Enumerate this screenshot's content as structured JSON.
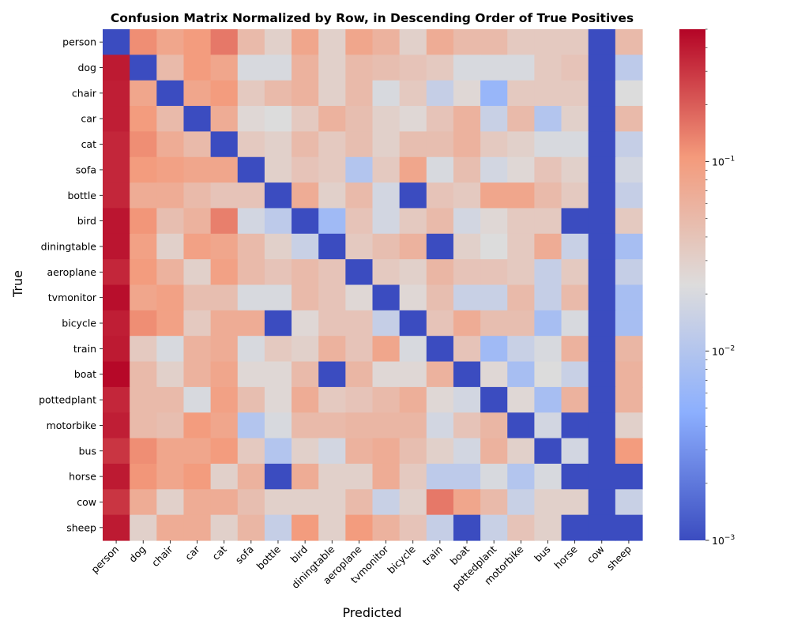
{
  "chart_data": {
    "type": "heatmap",
    "title": "Confusion Matrix Normalized by Row, in Descending Order of True Positives",
    "xlabel": "Predicted",
    "ylabel": "True",
    "scale": "log",
    "vmin": 0.001,
    "vmax": 0.5,
    "colormap": "coolwarm",
    "cmap_stops": [
      "#3b4cc0",
      "#8caffe",
      "#dddcdc",
      "#f49a7b",
      "#b40426"
    ],
    "colorbar_ticks": [
      {
        "value": 0.1,
        "base": "10",
        "exp": "−1"
      },
      {
        "value": 0.01,
        "base": "10",
        "exp": "−2"
      },
      {
        "value": 0.001,
        "base": "10",
        "exp": "−3"
      }
    ],
    "labels": [
      "person",
      "dog",
      "chair",
      "car",
      "cat",
      "sofa",
      "bottle",
      "bird",
      "diningtable",
      "aeroplane",
      "tvmonitor",
      "bicycle",
      "train",
      "boat",
      "pottedplant",
      "motorbike",
      "bus",
      "horse",
      "cow",
      "sheep"
    ],
    "matrix": [
      [
        0.001,
        0.12,
        0.08,
        0.1,
        0.15,
        0.05,
        0.03,
        0.08,
        0.03,
        0.08,
        0.06,
        0.03,
        0.07,
        0.05,
        0.05,
        0.035,
        0.035,
        0.035,
        0.001,
        0.05
      ],
      [
        0.4,
        0.001,
        0.05,
        0.1,
        0.08,
        0.02,
        0.02,
        0.06,
        0.03,
        0.05,
        0.045,
        0.04,
        0.035,
        0.02,
        0.02,
        0.02,
        0.035,
        0.04,
        0.001,
        0.012
      ],
      [
        0.38,
        0.08,
        0.001,
        0.08,
        0.1,
        0.035,
        0.05,
        0.06,
        0.03,
        0.05,
        0.02,
        0.035,
        0.014,
        0.025,
        0.006,
        0.035,
        0.035,
        0.035,
        0.001,
        0.022
      ],
      [
        0.38,
        0.1,
        0.05,
        0.001,
        0.07,
        0.025,
        0.022,
        0.035,
        0.06,
        0.045,
        0.03,
        0.025,
        0.04,
        0.06,
        0.015,
        0.05,
        0.01,
        0.03,
        0.001,
        0.05
      ],
      [
        0.35,
        0.12,
        0.07,
        0.05,
        0.001,
        0.035,
        0.03,
        0.05,
        0.035,
        0.045,
        0.03,
        0.045,
        0.045,
        0.06,
        0.035,
        0.03,
        0.02,
        0.02,
        0.001,
        0.014
      ],
      [
        0.35,
        0.1,
        0.09,
        0.08,
        0.08,
        0.001,
        0.03,
        0.04,
        0.035,
        0.01,
        0.035,
        0.08,
        0.02,
        0.045,
        0.018,
        0.025,
        0.04,
        0.03,
        0.001,
        0.018
      ],
      [
        0.35,
        0.07,
        0.07,
        0.05,
        0.04,
        0.04,
        0.001,
        0.07,
        0.03,
        0.05,
        0.018,
        0.001,
        0.04,
        0.035,
        0.08,
        0.08,
        0.05,
        0.035,
        0.001,
        0.014
      ],
      [
        0.42,
        0.11,
        0.045,
        0.06,
        0.14,
        0.018,
        0.012,
        0.001,
        0.007,
        0.04,
        0.018,
        0.035,
        0.05,
        0.018,
        0.025,
        0.035,
        0.035,
        0.001,
        0.001,
        0.035
      ],
      [
        0.42,
        0.09,
        0.03,
        0.09,
        0.08,
        0.05,
        0.03,
        0.015,
        0.001,
        0.035,
        0.045,
        0.06,
        0.001,
        0.03,
        0.022,
        0.035,
        0.07,
        0.015,
        0.001,
        0.008
      ],
      [
        0.35,
        0.1,
        0.06,
        0.03,
        0.09,
        0.05,
        0.04,
        0.05,
        0.04,
        0.001,
        0.035,
        0.03,
        0.055,
        0.04,
        0.04,
        0.035,
        0.014,
        0.035,
        0.001,
        0.014
      ],
      [
        0.45,
        0.08,
        0.09,
        0.045,
        0.045,
        0.02,
        0.02,
        0.05,
        0.04,
        0.025,
        0.001,
        0.025,
        0.045,
        0.015,
        0.015,
        0.05,
        0.014,
        0.05,
        0.001,
        0.008
      ],
      [
        0.38,
        0.12,
        0.09,
        0.035,
        0.07,
        0.07,
        0.001,
        0.025,
        0.04,
        0.04,
        0.014,
        0.001,
        0.04,
        0.07,
        0.045,
        0.045,
        0.008,
        0.02,
        0.001,
        0.008
      ],
      [
        0.4,
        0.035,
        0.02,
        0.06,
        0.07,
        0.02,
        0.035,
        0.03,
        0.06,
        0.04,
        0.08,
        0.02,
        0.001,
        0.04,
        0.007,
        0.015,
        0.02,
        0.06,
        0.001,
        0.055
      ],
      [
        0.48,
        0.05,
        0.03,
        0.06,
        0.08,
        0.025,
        0.025,
        0.05,
        0.001,
        0.055,
        0.025,
        0.025,
        0.06,
        0.001,
        0.025,
        0.008,
        0.022,
        0.015,
        0.001,
        0.06
      ],
      [
        0.35,
        0.05,
        0.05,
        0.02,
        0.09,
        0.045,
        0.025,
        0.07,
        0.035,
        0.04,
        0.05,
        0.065,
        0.025,
        0.018,
        0.001,
        0.025,
        0.008,
        0.06,
        0.001,
        0.06
      ],
      [
        0.38,
        0.05,
        0.045,
        0.1,
        0.08,
        0.01,
        0.02,
        0.05,
        0.05,
        0.055,
        0.055,
        0.055,
        0.018,
        0.04,
        0.055,
        0.001,
        0.018,
        0.001,
        0.001,
        0.03
      ],
      [
        0.3,
        0.12,
        0.08,
        0.08,
        0.1,
        0.035,
        0.01,
        0.03,
        0.018,
        0.06,
        0.07,
        0.045,
        0.03,
        0.018,
        0.06,
        0.03,
        0.001,
        0.018,
        0.001,
        0.1
      ],
      [
        0.4,
        0.11,
        0.08,
        0.1,
        0.03,
        0.06,
        0.001,
        0.07,
        0.03,
        0.03,
        0.07,
        0.035,
        0.012,
        0.012,
        0.02,
        0.01,
        0.02,
        0.001,
        0.001,
        0.001
      ],
      [
        0.3,
        0.07,
        0.03,
        0.07,
        0.07,
        0.045,
        0.03,
        0.03,
        0.03,
        0.05,
        0.015,
        0.03,
        0.15,
        0.08,
        0.05,
        0.015,
        0.03,
        0.03,
        0.001,
        0.015
      ],
      [
        0.4,
        0.03,
        0.07,
        0.07,
        0.03,
        0.055,
        0.014,
        0.1,
        0.03,
        0.1,
        0.06,
        0.04,
        0.014,
        0.001,
        0.015,
        0.04,
        0.03,
        0.001,
        0.001,
        0.001
      ]
    ]
  }
}
